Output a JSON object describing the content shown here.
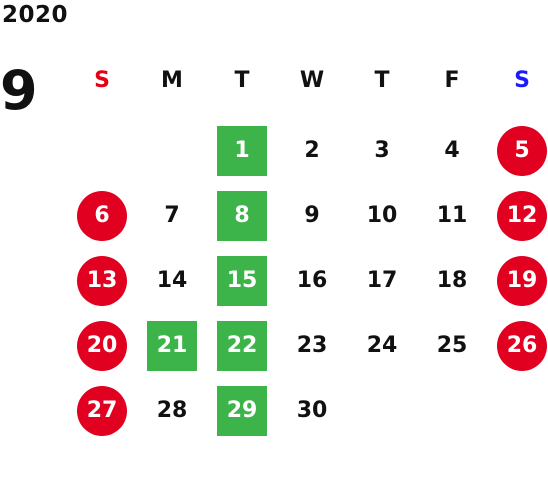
{
  "calendar": {
    "year": "2020",
    "month": "9",
    "weekdays": [
      {
        "label": "S",
        "color": "#e60012"
      },
      {
        "label": "M",
        "color": "#111111"
      },
      {
        "label": "T",
        "color": "#111111"
      },
      {
        "label": "W",
        "color": "#111111"
      },
      {
        "label": "T",
        "color": "#111111"
      },
      {
        "label": "F",
        "color": "#111111"
      },
      {
        "label": "S",
        "color": "#1a1aff"
      }
    ],
    "colors": {
      "holiday_red": "#e1001f",
      "green_box": "#3cb44a"
    },
    "start_weekday_index": 2,
    "days": [
      {
        "day": "1",
        "style": "green"
      },
      {
        "day": "2",
        "style": "plain"
      },
      {
        "day": "3",
        "style": "plain"
      },
      {
        "day": "4",
        "style": "plain"
      },
      {
        "day": "5",
        "style": "red"
      },
      {
        "day": "6",
        "style": "red"
      },
      {
        "day": "7",
        "style": "plain"
      },
      {
        "day": "8",
        "style": "green"
      },
      {
        "day": "9",
        "style": "plain"
      },
      {
        "day": "10",
        "style": "plain"
      },
      {
        "day": "11",
        "style": "plain"
      },
      {
        "day": "12",
        "style": "red"
      },
      {
        "day": "13",
        "style": "red"
      },
      {
        "day": "14",
        "style": "plain"
      },
      {
        "day": "15",
        "style": "green"
      },
      {
        "day": "16",
        "style": "plain"
      },
      {
        "day": "17",
        "style": "plain"
      },
      {
        "day": "18",
        "style": "plain"
      },
      {
        "day": "19",
        "style": "red"
      },
      {
        "day": "20",
        "style": "red"
      },
      {
        "day": "21",
        "style": "green"
      },
      {
        "day": "22",
        "style": "green"
      },
      {
        "day": "23",
        "style": "plain"
      },
      {
        "day": "24",
        "style": "plain"
      },
      {
        "day": "25",
        "style": "plain"
      },
      {
        "day": "26",
        "style": "red"
      },
      {
        "day": "27",
        "style": "red"
      },
      {
        "day": "28",
        "style": "plain"
      },
      {
        "day": "29",
        "style": "green"
      },
      {
        "day": "30",
        "style": "plain"
      }
    ]
  }
}
